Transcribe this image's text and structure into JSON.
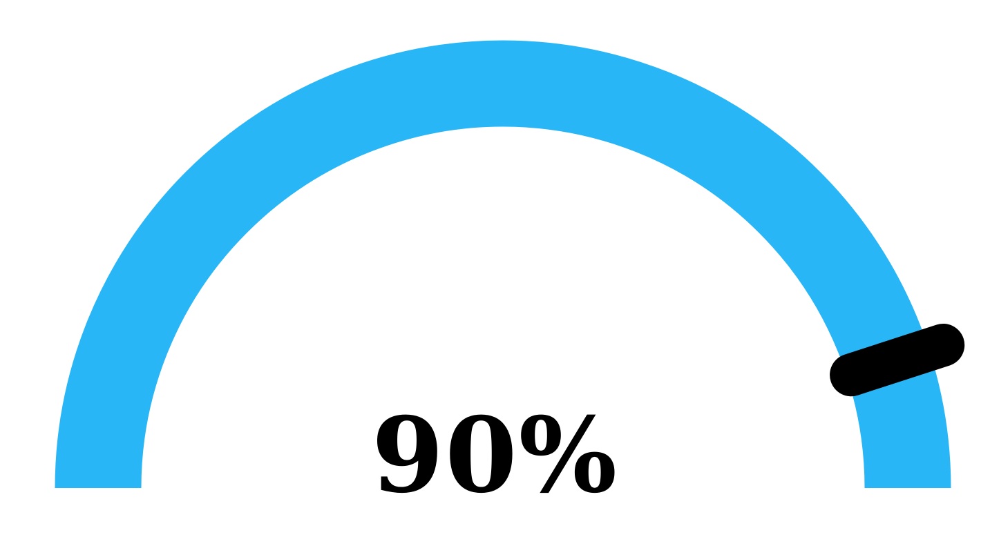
{
  "chart_data": {
    "type": "gauge",
    "value": 90,
    "min": 0,
    "max": 100,
    "value_label": "90%",
    "arc_color": "#29b6f6",
    "needle_color": "#000000"
  }
}
